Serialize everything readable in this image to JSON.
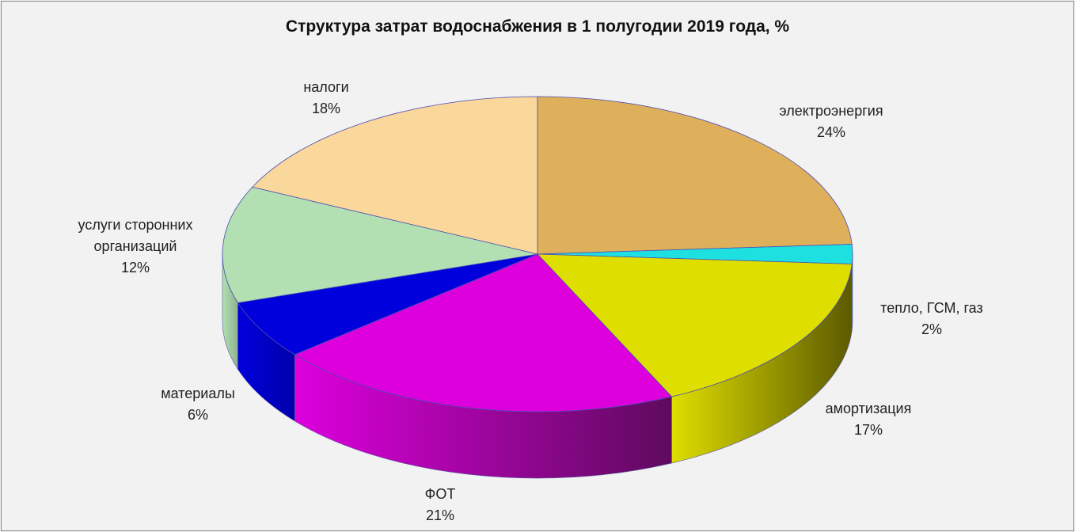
{
  "chart_data": {
    "type": "pie",
    "title": "Структура затрат водоснабжения в 1 полугодии 2019 года, %",
    "slices": [
      {
        "label": [
          "электроэнергия"
        ],
        "value": 24,
        "pct": "24%",
        "color": "#deb05c",
        "dark": "#8a6a30"
      },
      {
        "label": [
          "тепло, ГСМ, газ"
        ],
        "value": 2,
        "pct": "2%",
        "color": "#1ee0e0",
        "dark": "#118585"
      },
      {
        "label": [
          "амортизация"
        ],
        "value": 17,
        "pct": "17%",
        "color": "#dede00",
        "dark": "#5c5a00"
      },
      {
        "label": [
          "ФОТ"
        ],
        "value": 21,
        "pct": "21%",
        "color": "#dd00dd",
        "dark": "#5e0a5e"
      },
      {
        "label": [
          "материалы"
        ],
        "value": 6,
        "pct": "6%",
        "color": "#0000dd",
        "dark": "#0000aa"
      },
      {
        "label": [
          "услуги сторонних",
          "организаций"
        ],
        "value": 12,
        "pct": "12%",
        "color": "#b2e0b2",
        "dark": "#8fb08f"
      },
      {
        "label": [
          "налоги"
        ],
        "value": 18,
        "pct": "18%",
        "color": "#fad79b",
        "dark": "#c0a070"
      }
    ]
  }
}
